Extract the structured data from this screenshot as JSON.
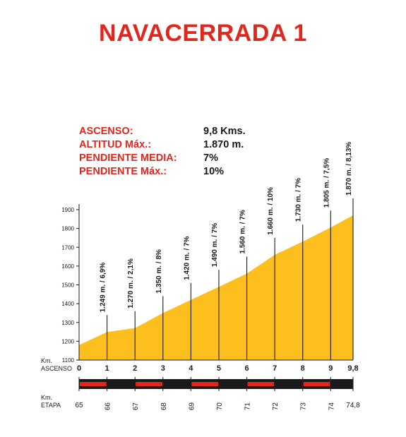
{
  "title": "NAVACERRADA 1",
  "stats": [
    {
      "label": "ASCENSO:",
      "value": "9,8 Kms."
    },
    {
      "label": "ALTITUD Máx.:",
      "value": "1.870 m."
    },
    {
      "label": "PENDIENTE MEDIA:",
      "value": "7%"
    },
    {
      "label": "PENDIENTE Máx.:",
      "value": "10%"
    }
  ],
  "colors": {
    "title": "#e2261c",
    "fill": "#fcbf1e",
    "red": "#e2261c",
    "black": "#1a1a1a"
  },
  "chart_data": {
    "type": "area",
    "ylim": [
      1100,
      1900
    ],
    "xlim": [
      0,
      9.8
    ],
    "y_ticks": [
      "1100",
      "1200",
      "1300",
      "1400",
      "1500",
      "1600",
      "1700",
      "1800",
      "1900"
    ],
    "ascenso_label": "Km.\nASCENSO",
    "etapa_label": "Km.\nETAPA",
    "ascenso_ticks": [
      "0",
      "1",
      "2",
      "3",
      "4",
      "5",
      "6",
      "7",
      "8",
      "9",
      "9,8"
    ],
    "etapa_ticks": [
      "65",
      "66",
      "67",
      "68",
      "69",
      "70",
      "71",
      "72",
      "73",
      "74",
      "74,8"
    ],
    "x": [
      0,
      1,
      2,
      3,
      4,
      5,
      6,
      7,
      8,
      9,
      9.8
    ],
    "y": [
      1180,
      1249,
      1270,
      1350,
      1420,
      1490,
      1560,
      1660,
      1730,
      1805,
      1870
    ],
    "annotations": [
      "1.249 m. / 6,9%",
      "1.270 m. / 2,1%",
      "1.350 m. / 8%",
      "1.420 m. / 7%",
      "1.490 m. / 7%",
      "1.560 m. / 7%",
      "1.660 m. / 10%",
      "1.730 m. / 7%",
      "1.805 m. / 7,5%",
      "1.870 m. / 8,13%"
    ]
  }
}
